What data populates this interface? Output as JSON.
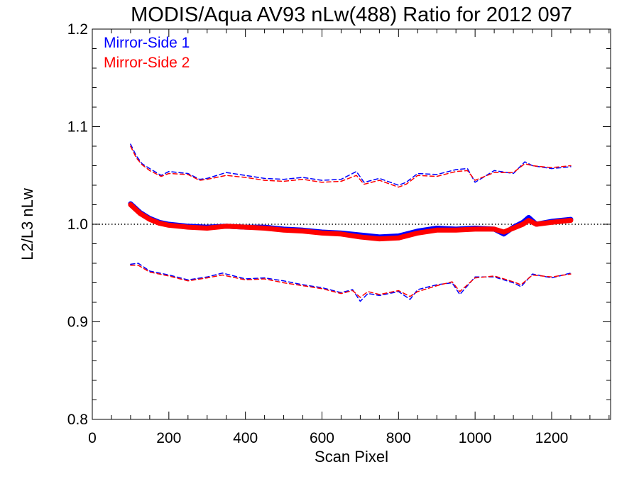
{
  "chart_data": {
    "type": "line",
    "title": "MODIS/Aqua AV93 nLw(488) Ratio for 2012 097",
    "xlabel": "Scan Pixel",
    "ylabel": "L2/L3 nLw",
    "xlim": [
      0,
      1354
    ],
    "ylim": [
      0.8,
      1.2
    ],
    "xticks": [
      0,
      200,
      400,
      600,
      800,
      1000,
      1200
    ],
    "xtick_labels": [
      "0",
      "200",
      "400",
      "600",
      "800",
      "1000",
      "1200"
    ],
    "yticks": [
      0.8,
      0.9,
      1.0,
      1.1,
      1.2
    ],
    "ytick_labels": [
      "0.8",
      "0.9",
      "1.0",
      "1.1",
      "1.2"
    ],
    "reference_line": 1.0,
    "legend": {
      "placement": "top-left"
    },
    "colors": {
      "ms1": "#0000ff",
      "ms2": "#ff0000",
      "reference": "#000000"
    },
    "series": [
      {
        "name": "Mirror-Side 1",
        "role": "mean",
        "x": [
          100,
          125,
          150,
          175,
          200,
          250,
          300,
          350,
          400,
          450,
          500,
          550,
          600,
          650,
          700,
          750,
          800,
          850,
          900,
          950,
          1000,
          1050,
          1075,
          1100,
          1125,
          1140,
          1160,
          1200,
          1250
        ],
        "y": [
          1.021,
          1.012,
          1.006,
          1.002,
          1.0,
          0.998,
          0.997,
          0.998,
          0.997,
          0.997,
          0.995,
          0.994,
          0.992,
          0.991,
          0.989,
          0.987,
          0.988,
          0.993,
          0.996,
          0.995,
          0.996,
          0.995,
          0.99,
          0.997,
          1.002,
          1.007,
          1.0,
          1.003,
          1.005
        ]
      },
      {
        "name": "Mirror-Side 2",
        "role": "mean",
        "x": [
          100,
          125,
          150,
          175,
          200,
          250,
          300,
          350,
          400,
          450,
          500,
          550,
          600,
          650,
          700,
          750,
          800,
          850,
          900,
          950,
          1000,
          1050,
          1075,
          1100,
          1125,
          1140,
          1160,
          1200,
          1250
        ],
        "y": [
          1.02,
          1.011,
          1.005,
          1.001,
          0.999,
          0.997,
          0.996,
          0.998,
          0.997,
          0.996,
          0.994,
          0.993,
          0.991,
          0.99,
          0.987,
          0.985,
          0.986,
          0.991,
          0.994,
          0.994,
          0.995,
          0.995,
          0.992,
          0.996,
          1.0,
          1.004,
          1.0,
          1.002,
          1.004
        ]
      },
      {
        "name": "Mirror-Side 1",
        "role": "upper",
        "x": [
          100,
          115,
          130,
          150,
          180,
          200,
          250,
          280,
          300,
          350,
          400,
          450,
          500,
          550,
          600,
          650,
          690,
          710,
          750,
          800,
          820,
          850,
          900,
          950,
          980,
          1000,
          1050,
          1100,
          1130,
          1150,
          1200,
          1250
        ],
        "y": [
          1.082,
          1.07,
          1.062,
          1.057,
          1.05,
          1.054,
          1.052,
          1.046,
          1.047,
          1.053,
          1.05,
          1.047,
          1.046,
          1.048,
          1.045,
          1.046,
          1.054,
          1.043,
          1.047,
          1.04,
          1.043,
          1.052,
          1.051,
          1.056,
          1.057,
          1.043,
          1.055,
          1.052,
          1.064,
          1.06,
          1.057,
          1.059
        ]
      },
      {
        "name": "Mirror-Side 2",
        "role": "upper",
        "x": [
          100,
          115,
          130,
          150,
          180,
          200,
          250,
          280,
          300,
          350,
          400,
          450,
          500,
          550,
          600,
          650,
          690,
          710,
          750,
          800,
          820,
          850,
          900,
          950,
          980,
          1000,
          1050,
          1100,
          1130,
          1150,
          1200,
          1250
        ],
        "y": [
          1.08,
          1.068,
          1.061,
          1.055,
          1.049,
          1.052,
          1.051,
          1.045,
          1.046,
          1.05,
          1.048,
          1.045,
          1.044,
          1.046,
          1.043,
          1.044,
          1.05,
          1.041,
          1.045,
          1.038,
          1.041,
          1.05,
          1.049,
          1.054,
          1.055,
          1.045,
          1.053,
          1.053,
          1.062,
          1.06,
          1.058,
          1.06
        ]
      },
      {
        "name": "Mirror-Side 1",
        "role": "lower",
        "x": [
          100,
          120,
          150,
          200,
          250,
          300,
          340,
          400,
          450,
          500,
          550,
          600,
          650,
          680,
          700,
          720,
          750,
          800,
          830,
          850,
          900,
          940,
          960,
          1000,
          1050,
          1100,
          1120,
          1150,
          1200,
          1250
        ],
        "y": [
          0.959,
          0.96,
          0.952,
          0.948,
          0.943,
          0.946,
          0.95,
          0.944,
          0.945,
          0.942,
          0.938,
          0.935,
          0.93,
          0.933,
          0.921,
          0.929,
          0.927,
          0.931,
          0.923,
          0.933,
          0.938,
          0.94,
          0.928,
          0.946,
          0.946,
          0.94,
          0.936,
          0.949,
          0.945,
          0.95
        ]
      },
      {
        "name": "Mirror-Side 2",
        "role": "lower",
        "x": [
          100,
          120,
          150,
          200,
          250,
          300,
          340,
          400,
          450,
          500,
          550,
          600,
          650,
          680,
          700,
          720,
          750,
          800,
          830,
          850,
          900,
          940,
          960,
          1000,
          1050,
          1100,
          1120,
          1150,
          1200,
          1250
        ],
        "y": [
          0.958,
          0.958,
          0.951,
          0.947,
          0.942,
          0.945,
          0.948,
          0.943,
          0.944,
          0.94,
          0.937,
          0.934,
          0.929,
          0.932,
          0.925,
          0.931,
          0.928,
          0.932,
          0.926,
          0.931,
          0.937,
          0.941,
          0.931,
          0.945,
          0.947,
          0.941,
          0.938,
          0.948,
          0.946,
          0.949
        ]
      }
    ]
  }
}
